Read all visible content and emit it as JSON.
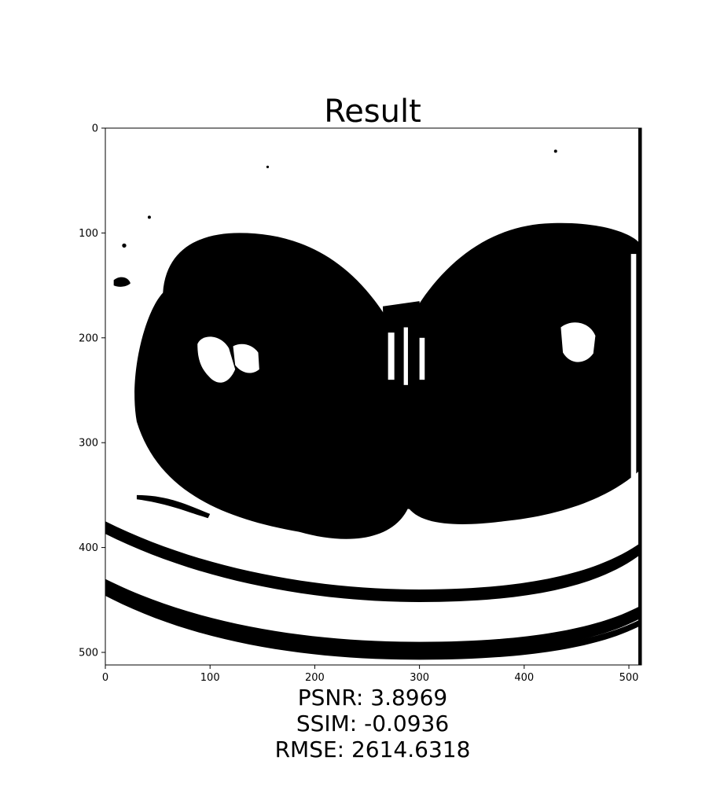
{
  "chart_data": {
    "type": "heatmap",
    "title": "Result",
    "xlabel": "",
    "ylabel": "",
    "colormap": "binary",
    "colors": {
      "foreground": "#000000",
      "background": "#ffffff"
    },
    "image_size": [
      512,
      512
    ],
    "xlim": [
      0,
      512
    ],
    "ylim": [
      512,
      0
    ],
    "x_ticks": [
      0,
      100,
      200,
      300,
      400,
      500
    ],
    "y_ticks": [
      0,
      100,
      200,
      300,
      400,
      500
    ],
    "grid": false,
    "legend": "none",
    "metrics": {
      "psnr": "PSNR: 3.8969",
      "ssim": "SSIM: -0.0936",
      "rmse": "RMSE: 2614.6318"
    }
  }
}
